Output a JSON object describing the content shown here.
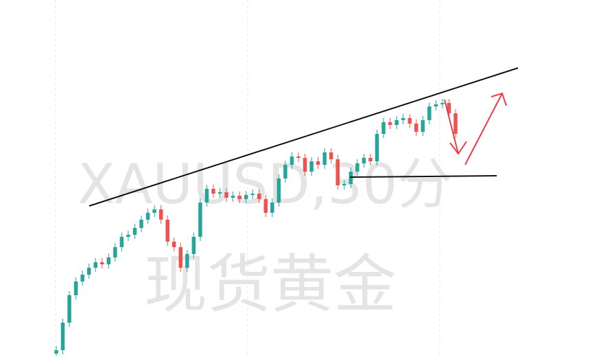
{
  "chart_data": {
    "type": "candlestick",
    "watermark": "XAUUSD,30分",
    "watermark_subtitle": "现货黄金",
    "up_color": "#26a69a",
    "down_color": "#ef5350",
    "ylim": [
      0,
      520
    ],
    "open": [
      5,
      10,
      50,
      90,
      110,
      120,
      130,
      138,
      135,
      145,
      160,
      175,
      178,
      188,
      200,
      210,
      215,
      200,
      168,
      160,
      130,
      150,
      175,
      225,
      245,
      238,
      240,
      232,
      235,
      230,
      236,
      238,
      230,
      210,
      225,
      260,
      280,
      292,
      290,
      270,
      285,
      280,
      298,
      288,
      250,
      252,
      270,
      282,
      290,
      285,
      325,
      342,
      338,
      345,
      348,
      340,
      328,
      345,
      365,
      368,
      370,
      355
    ],
    "close": [
      10,
      50,
      90,
      110,
      120,
      130,
      138,
      135,
      145,
      160,
      175,
      178,
      188,
      200,
      210,
      215,
      200,
      168,
      160,
      130,
      150,
      175,
      225,
      245,
      238,
      240,
      232,
      235,
      230,
      236,
      238,
      230,
      210,
      225,
      260,
      280,
      292,
      290,
      270,
      285,
      280,
      298,
      288,
      250,
      252,
      270,
      282,
      290,
      285,
      325,
      342,
      338,
      345,
      348,
      340,
      328,
      345,
      365,
      368,
      370,
      355,
      325
    ],
    "high": [
      16,
      56,
      96,
      116,
      126,
      136,
      144,
      144,
      151,
      166,
      181,
      184,
      194,
      206,
      216,
      221,
      221,
      206,
      174,
      166,
      156,
      181,
      231,
      251,
      251,
      246,
      246,
      241,
      241,
      242,
      244,
      244,
      236,
      231,
      266,
      286,
      298,
      298,
      296,
      291,
      291,
      304,
      304,
      294,
      258,
      276,
      288,
      296,
      296,
      331,
      348,
      348,
      351,
      354,
      354,
      346,
      351,
      371,
      374,
      376,
      376,
      361
    ],
    "low": [
      2,
      4,
      44,
      84,
      104,
      114,
      124,
      129,
      129,
      139,
      154,
      169,
      172,
      182,
      194,
      204,
      194,
      162,
      154,
      124,
      124,
      144,
      169,
      219,
      232,
      232,
      226,
      226,
      224,
      224,
      230,
      224,
      204,
      204,
      219,
      254,
      274,
      284,
      264,
      264,
      274,
      274,
      282,
      244,
      244,
      246,
      264,
      276,
      279,
      279,
      319,
      332,
      332,
      339,
      334,
      322,
      322,
      339,
      359,
      362,
      349,
      319
    ]
  }
}
